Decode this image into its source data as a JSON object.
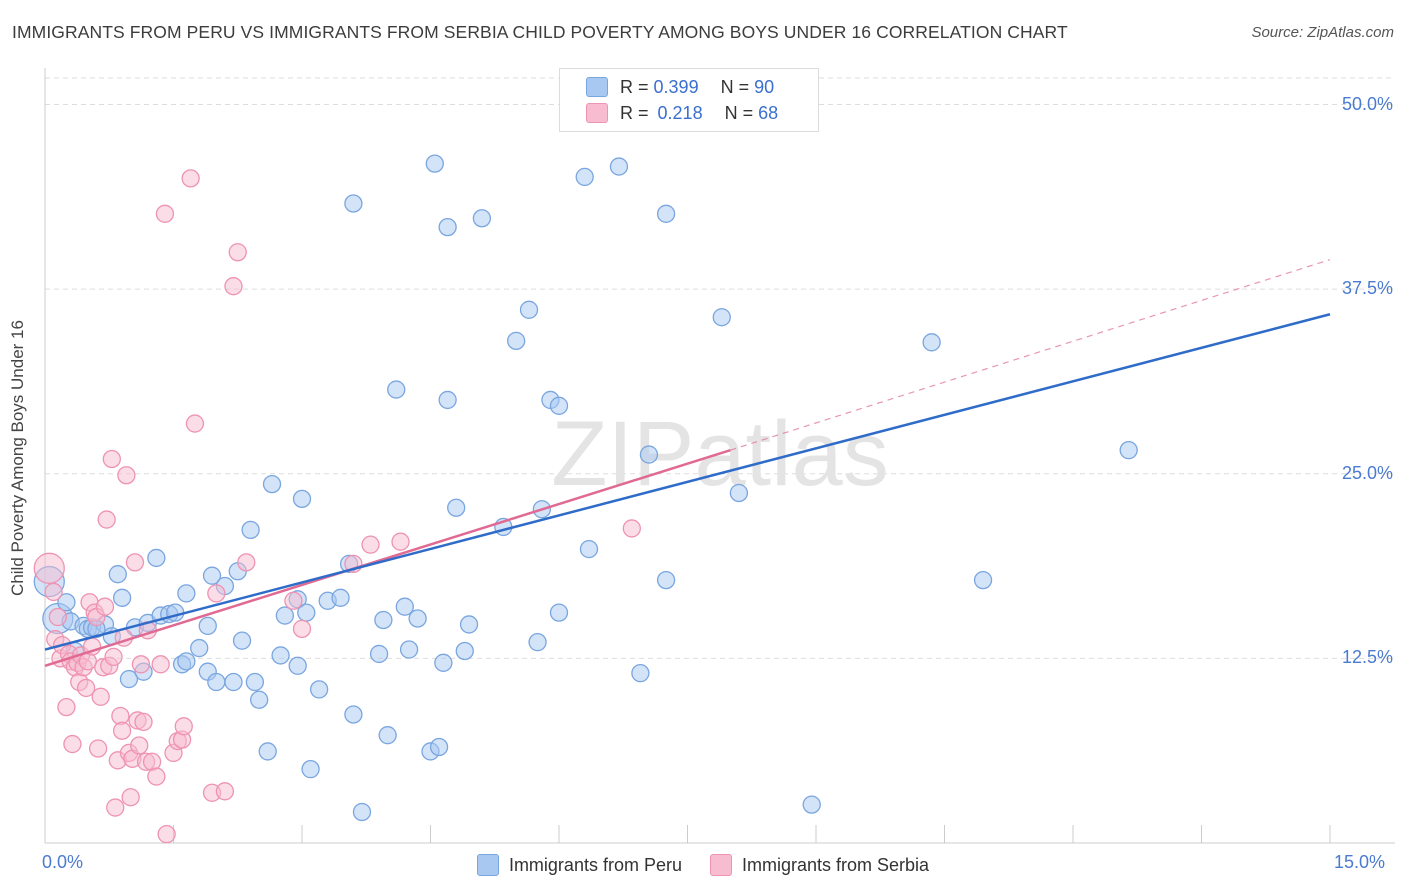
{
  "title": "IMMIGRANTS FROM PERU VS IMMIGRANTS FROM SERBIA CHILD POVERTY AMONG BOYS UNDER 16 CORRELATION CHART",
  "source": "Source: ZipAtlas.com",
  "watermark": "ZIPatlas",
  "legend_top": {
    "rows": [
      {
        "r_label": "R =",
        "r_value": "0.399",
        "n_label": "N =",
        "n_value": "90"
      },
      {
        "r_label": "R =",
        "r_value": "0.218",
        "n_label": "N =",
        "n_value": "68"
      }
    ]
  },
  "colors": {
    "peru_fill": "#a8c8f2",
    "peru_stroke": "#7aa6e0",
    "peru_line": "#2f6cc9",
    "serbia_fill": "#f8bcd0",
    "serbia_stroke": "#ee93b2",
    "serbia_line": "#e06a93",
    "tick_text": "#4a7bd0",
    "grid": "#dddddd"
  },
  "chart_data": {
    "type": "scatter",
    "title": "IMMIGRANTS FROM PERU VS IMMIGRANTS FROM SERBIA CHILD POVERTY AMONG BOYS UNDER 16 CORRELATION CHART",
    "xlabel": "",
    "ylabel": "Child Poverty Among Boys Under 16",
    "xlim": [
      0,
      15
    ],
    "ylim": [
      0,
      52
    ],
    "x_tick_labels": [
      "0.0%",
      "15.0%"
    ],
    "y_ticks": [
      12.5,
      25.0,
      37.5,
      50.0
    ],
    "y_tick_labels": [
      "12.5%",
      "25.0%",
      "37.5%",
      "50.0%"
    ],
    "series": [
      {
        "name": "Immigrants from Peru",
        "R": 0.399,
        "N": 90,
        "trend": {
          "x0": 0.0,
          "y0": 13.1,
          "x1": 15.0,
          "y1": 35.8
        },
        "points": [
          {
            "x": 0.05,
            "y": 17.7,
            "big": true
          },
          {
            "x": 0.15,
            "y": 15.2,
            "big": true
          },
          {
            "x": 0.25,
            "y": 16.3
          },
          {
            "x": 0.3,
            "y": 15.0
          },
          {
            "x": 0.35,
            "y": 13.0
          },
          {
            "x": 0.45,
            "y": 14.7
          },
          {
            "x": 0.5,
            "y": 14.5
          },
          {
            "x": 0.55,
            "y": 14.6
          },
          {
            "x": 0.7,
            "y": 14.8
          },
          {
            "x": 0.78,
            "y": 14.0
          },
          {
            "x": 0.85,
            "y": 18.2
          },
          {
            "x": 0.9,
            "y": 16.6
          },
          {
            "x": 0.98,
            "y": 11.1
          },
          {
            "x": 1.05,
            "y": 14.6
          },
          {
            "x": 1.15,
            "y": 11.6
          },
          {
            "x": 1.2,
            "y": 14.9
          },
          {
            "x": 1.3,
            "y": 19.3
          },
          {
            "x": 1.35,
            "y": 15.4
          },
          {
            "x": 1.45,
            "y": 15.5
          },
          {
            "x": 1.52,
            "y": 15.6
          },
          {
            "x": 1.6,
            "y": 12.1
          },
          {
            "x": 1.65,
            "y": 12.3
          },
          {
            "x": 1.65,
            "y": 16.9
          },
          {
            "x": 1.8,
            "y": 13.2
          },
          {
            "x": 1.9,
            "y": 11.6
          },
          {
            "x": 1.9,
            "y": 14.7
          },
          {
            "x": 1.95,
            "y": 18.1
          },
          {
            "x": 2.0,
            "y": 10.9
          },
          {
            "x": 2.1,
            "y": 17.4
          },
          {
            "x": 2.2,
            "y": 10.9
          },
          {
            "x": 2.25,
            "y": 18.4
          },
          {
            "x": 2.3,
            "y": 13.7
          },
          {
            "x": 2.4,
            "y": 21.2
          },
          {
            "x": 2.45,
            "y": 10.9
          },
          {
            "x": 2.5,
            "y": 9.7
          },
          {
            "x": 2.6,
            "y": 6.2
          },
          {
            "x": 2.65,
            "y": 24.3
          },
          {
            "x": 2.75,
            "y": 12.7
          },
          {
            "x": 2.8,
            "y": 15.4
          },
          {
            "x": 2.95,
            "y": 12.0
          },
          {
            "x": 2.95,
            "y": 16.5
          },
          {
            "x": 3.0,
            "y": 23.3
          },
          {
            "x": 3.05,
            "y": 15.6
          },
          {
            "x": 3.1,
            "y": 5.0
          },
          {
            "x": 3.2,
            "y": 10.4
          },
          {
            "x": 3.3,
            "y": 16.4
          },
          {
            "x": 3.45,
            "y": 16.6
          },
          {
            "x": 3.55,
            "y": 18.9
          },
          {
            "x": 3.6,
            "y": 8.7
          },
          {
            "x": 3.6,
            "y": 43.3
          },
          {
            "x": 3.7,
            "y": 2.1
          },
          {
            "x": 3.9,
            "y": 12.8
          },
          {
            "x": 3.95,
            "y": 15.1
          },
          {
            "x": 4.0,
            "y": 7.3
          },
          {
            "x": 4.1,
            "y": 30.7
          },
          {
            "x": 4.2,
            "y": 16.0
          },
          {
            "x": 4.25,
            "y": 13.1
          },
          {
            "x": 4.35,
            "y": 15.2
          },
          {
            "x": 4.5,
            "y": 6.2
          },
          {
            "x": 4.55,
            "y": 46.0
          },
          {
            "x": 4.6,
            "y": 6.5
          },
          {
            "x": 4.65,
            "y": 12.2
          },
          {
            "x": 4.7,
            "y": 41.7
          },
          {
            "x": 4.7,
            "y": 30.0
          },
          {
            "x": 4.8,
            "y": 22.7
          },
          {
            "x": 4.9,
            "y": 13.0
          },
          {
            "x": 4.95,
            "y": 14.8
          },
          {
            "x": 5.1,
            "y": 42.3
          },
          {
            "x": 5.35,
            "y": 21.4
          },
          {
            "x": 5.5,
            "y": 34.0
          },
          {
            "x": 5.65,
            "y": 36.1
          },
          {
            "x": 5.75,
            "y": 13.6
          },
          {
            "x": 5.8,
            "y": 22.6
          },
          {
            "x": 5.9,
            "y": 30.0
          },
          {
            "x": 6.0,
            "y": 29.6
          },
          {
            "x": 6.0,
            "y": 15.6
          },
          {
            "x": 6.3,
            "y": 45.1
          },
          {
            "x": 6.35,
            "y": 19.9
          },
          {
            "x": 6.7,
            "y": 45.8
          },
          {
            "x": 6.95,
            "y": 11.5
          },
          {
            "x": 7.05,
            "y": 26.3
          },
          {
            "x": 7.25,
            "y": 42.6
          },
          {
            "x": 7.25,
            "y": 17.8
          },
          {
            "x": 7.9,
            "y": 35.6
          },
          {
            "x": 8.1,
            "y": 23.7
          },
          {
            "x": 8.95,
            "y": 2.6
          },
          {
            "x": 10.35,
            "y": 33.9
          },
          {
            "x": 10.95,
            "y": 17.8
          },
          {
            "x": 12.65,
            "y": 26.6
          },
          {
            "x": 0.6,
            "y": 14.5
          }
        ]
      },
      {
        "name": "Immigrants from Serbia",
        "R": 0.218,
        "N": 68,
        "trend": {
          "x0": 0.0,
          "y0": 12.0,
          "x1": 8.0,
          "y1": 26.6
        },
        "trend_dashed": {
          "x0": 8.0,
          "y0": 26.6,
          "x1": 15.0,
          "y1": 39.5
        },
        "points": [
          {
            "x": 0.05,
            "y": 18.6,
            "big": true
          },
          {
            "x": 0.1,
            "y": 17.0
          },
          {
            "x": 0.12,
            "y": 13.8
          },
          {
            "x": 0.15,
            "y": 15.3
          },
          {
            "x": 0.18,
            "y": 12.5
          },
          {
            "x": 0.2,
            "y": 13.4
          },
          {
            "x": 0.25,
            "y": 9.2
          },
          {
            "x": 0.28,
            "y": 12.8
          },
          {
            "x": 0.3,
            "y": 12.3
          },
          {
            "x": 0.32,
            "y": 6.7
          },
          {
            "x": 0.35,
            "y": 11.9
          },
          {
            "x": 0.38,
            "y": 12.2
          },
          {
            "x": 0.4,
            "y": 10.9
          },
          {
            "x": 0.42,
            "y": 12.7
          },
          {
            "x": 0.45,
            "y": 11.9
          },
          {
            "x": 0.48,
            "y": 10.5
          },
          {
            "x": 0.5,
            "y": 12.3
          },
          {
            "x": 0.52,
            "y": 16.3
          },
          {
            "x": 0.55,
            "y": 13.3
          },
          {
            "x": 0.58,
            "y": 15.6
          },
          {
            "x": 0.6,
            "y": 15.3
          },
          {
            "x": 0.62,
            "y": 6.4
          },
          {
            "x": 0.65,
            "y": 9.9
          },
          {
            "x": 0.68,
            "y": 11.9
          },
          {
            "x": 0.7,
            "y": 16.0
          },
          {
            "x": 0.72,
            "y": 21.9
          },
          {
            "x": 0.75,
            "y": 12.0
          },
          {
            "x": 0.78,
            "y": 26.0
          },
          {
            "x": 0.8,
            "y": 12.6
          },
          {
            "x": 0.82,
            "y": 2.4
          },
          {
            "x": 0.85,
            "y": 5.6
          },
          {
            "x": 0.88,
            "y": 8.6
          },
          {
            "x": 0.9,
            "y": 7.6
          },
          {
            "x": 0.92,
            "y": 13.9
          },
          {
            "x": 0.95,
            "y": 24.9
          },
          {
            "x": 0.98,
            "y": 6.1
          },
          {
            "x": 1.0,
            "y": 3.1
          },
          {
            "x": 1.02,
            "y": 5.7
          },
          {
            "x": 1.05,
            "y": 19.0
          },
          {
            "x": 1.08,
            "y": 8.3
          },
          {
            "x": 1.1,
            "y": 6.6
          },
          {
            "x": 1.12,
            "y": 12.1
          },
          {
            "x": 1.15,
            "y": 8.2
          },
          {
            "x": 1.18,
            "y": 5.5
          },
          {
            "x": 1.2,
            "y": 14.4
          },
          {
            "x": 1.25,
            "y": 5.5
          },
          {
            "x": 1.3,
            "y": 4.5
          },
          {
            "x": 1.35,
            "y": 12.1
          },
          {
            "x": 1.4,
            "y": 42.6
          },
          {
            "x": 1.42,
            "y": 0.6
          },
          {
            "x": 1.5,
            "y": 6.1
          },
          {
            "x": 1.55,
            "y": 6.9
          },
          {
            "x": 1.6,
            "y": 7.0
          },
          {
            "x": 1.62,
            "y": 7.9
          },
          {
            "x": 1.7,
            "y": 45.0
          },
          {
            "x": 1.75,
            "y": 28.4
          },
          {
            "x": 1.95,
            "y": 3.4
          },
          {
            "x": 2.0,
            "y": 16.9
          },
          {
            "x": 2.1,
            "y": 3.5
          },
          {
            "x": 2.2,
            "y": 37.7
          },
          {
            "x": 2.25,
            "y": 40.0
          },
          {
            "x": 2.35,
            "y": 19.0
          },
          {
            "x": 2.9,
            "y": 16.4
          },
          {
            "x": 3.0,
            "y": 14.5
          },
          {
            "x": 3.6,
            "y": 18.9
          },
          {
            "x": 3.8,
            "y": 20.2
          },
          {
            "x": 4.15,
            "y": 20.4
          },
          {
            "x": 6.85,
            "y": 21.3
          }
        ]
      }
    ]
  },
  "legend_bottom": [
    "Immigrants from Peru",
    "Immigrants from Serbia"
  ]
}
